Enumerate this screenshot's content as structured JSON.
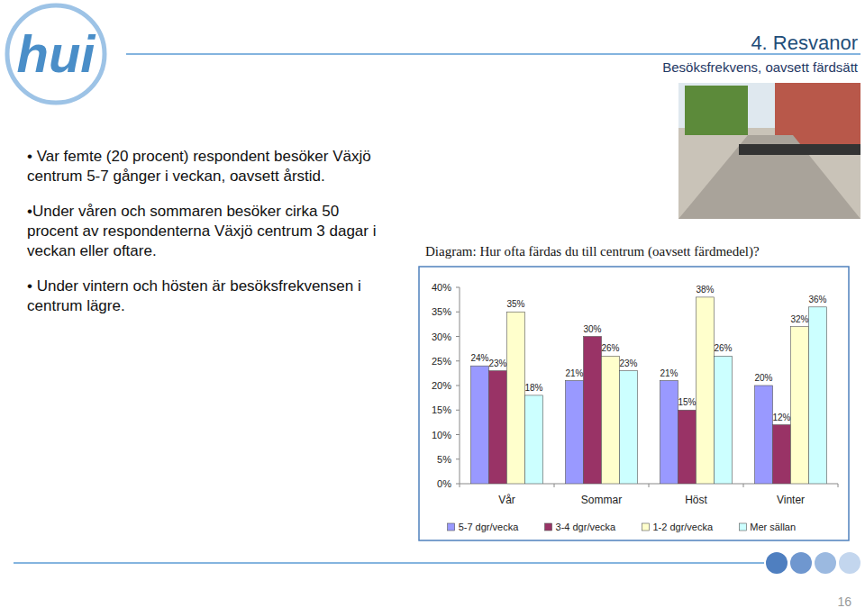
{
  "logo": "hui",
  "header": {
    "title": "4. Resvanor",
    "subtitle": "Besöksfrekvens, oavsett färdsätt"
  },
  "bullets": [
    "• Var femte (20 procent) respondent besöker Växjö centrum 5-7 gånger i veckan, oavsett årstid.",
    "•Under våren och sommaren besöker cirka 50 procent av respondenterna Växjö centrum 3 dagar i veckan eller oftare.",
    "• Under vintern och hösten är besöksfrekvensen i centrum lägre."
  ],
  "page_number": "16",
  "chart_data": {
    "type": "bar",
    "title": "Diagram: Hur ofta färdas du till centrum (oavsett färdmedel)?",
    "categories": [
      "Vår",
      "Sommar",
      "Höst",
      "Vinter"
    ],
    "series": [
      {
        "name": "5-7 dgr/vecka",
        "color": "#9999ff",
        "values": [
          24,
          21,
          21,
          20
        ],
        "value_labels": [
          "24%",
          "21%",
          "21%",
          "20%"
        ]
      },
      {
        "name": "3-4 dgr/vecka",
        "color": "#993366",
        "values": [
          23,
          30,
          15,
          12
        ],
        "value_labels": [
          "23%",
          "30%",
          "15%",
          "12%"
        ]
      },
      {
        "name": "1-2 dgr/vecka",
        "color": "#ffffcc",
        "values": [
          35,
          26,
          38,
          32
        ],
        "value_labels": [
          "35%",
          "26%",
          "38%",
          "32%"
        ]
      },
      {
        "name": "Mer sällan",
        "color": "#ccffff",
        "values": [
          18,
          23,
          26,
          36
        ],
        "value_labels": [
          "18%",
          "23%",
          "26%",
          "36%"
        ]
      }
    ],
    "ylim": [
      0,
      40
    ],
    "yticks": [
      {
        "value": 0,
        "label": "0%"
      },
      {
        "value": 5,
        "label": "5%"
      },
      {
        "value": 10,
        "label": "10%"
      },
      {
        "value": 15,
        "label": "15%"
      },
      {
        "value": 20,
        "label": "20%"
      },
      {
        "value": 25,
        "label": "25%"
      },
      {
        "value": 30,
        "label": "30%"
      },
      {
        "value": 35,
        "label": "35%"
      },
      {
        "value": 40,
        "label": "40%"
      }
    ],
    "grid": false,
    "legend": "bottom",
    "data_labels": true
  }
}
